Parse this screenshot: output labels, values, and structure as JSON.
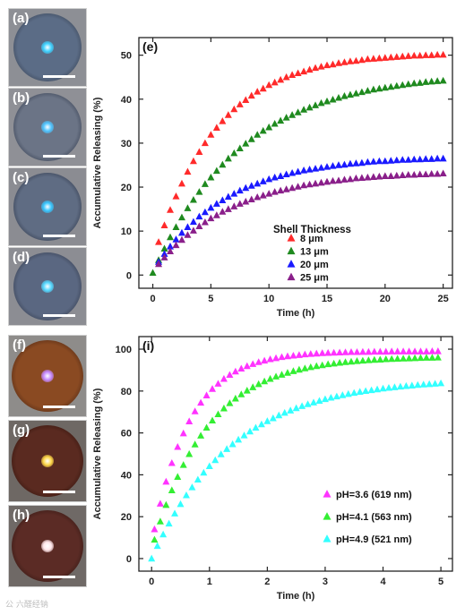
{
  "micrographs": {
    "top": [
      {
        "label": "(a)",
        "bg": "#8d8f95",
        "dish": "#5b6c86",
        "rim": "#3f4b5e",
        "spot": "#3fd2ff"
      },
      {
        "label": "(b)",
        "bg": "#8f9096",
        "dish": "#6b7486",
        "rim": "#40495b",
        "spot": "#4fc4ff"
      },
      {
        "label": "(c)",
        "bg": "#8b8c92",
        "dish": "#5f6c83",
        "rim": "#3a4356",
        "spot": "#38c6ff"
      },
      {
        "label": "(d)",
        "bg": "#8c8d93",
        "dish": "#5a6781",
        "rim": "#3c4558",
        "spot": "#55d8ff"
      }
    ],
    "bottom": [
      {
        "label": "(f)",
        "bg": "#8e8c8a",
        "dish": "#8a4a22",
        "rim": "#5a2f17",
        "spot": "#c58aff"
      },
      {
        "label": "(g)",
        "bg": "#6e6864",
        "dish": "#5a2a20",
        "rim": "#3c1a12",
        "spot": "#ffd84a"
      },
      {
        "label": "(h)",
        "bg": "#6f6966",
        "dish": "#5b2b25",
        "rim": "#3b1c17",
        "spot": "#ffe6ea"
      }
    ]
  },
  "watermark": "公 六醛经钠",
  "chart_data": [
    {
      "type": "scatter",
      "panel_label": "(e)",
      "title": "",
      "xlabel": "Time (h)",
      "ylabel": "Accumulative Releasing  (%)",
      "xlim": [
        -1.2,
        25.8
      ],
      "ylim": [
        -3,
        54
      ],
      "xticks": [
        0,
        5,
        10,
        15,
        20,
        25
      ],
      "yticks": [
        0,
        10,
        20,
        30,
        40,
        50
      ],
      "legend_title": "Shell Thickness",
      "legend_position": "center-right",
      "series": [
        {
          "name": "8   μm",
          "color": "#ff2a2a",
          "model": {
            "a": 50.6,
            "k": 0.185,
            "start": 0.5,
            "end": 25,
            "step": 0.5,
            "y0": 7.5
          }
        },
        {
          "name": "13 μm",
          "color": "#1f8a1f",
          "model": {
            "a": 46.0,
            "k": 0.13,
            "start": 0,
            "end": 25,
            "step": 0.5,
            "y0": 0.5
          }
        },
        {
          "name": "20 μm",
          "color": "#1a1aff",
          "model": {
            "a": 27.0,
            "k": 0.16,
            "start": 0.5,
            "end": 25,
            "step": 0.5,
            "y0": 3
          }
        },
        {
          "name": "25 μm",
          "color": "#8a1f8a",
          "model": {
            "a": 23.6,
            "k": 0.15,
            "start": 0.5,
            "end": 25,
            "step": 0.5,
            "y0": 2.5
          }
        }
      ]
    },
    {
      "type": "scatter",
      "panel_label": "(i)",
      "title": "",
      "xlabel": "Time (h)",
      "ylabel": "Accumulative Releasing  (%)",
      "xlim": [
        -0.22,
        5.2
      ],
      "ylim": [
        -6,
        106
      ],
      "xticks": [
        0,
        1,
        2,
        3,
        4,
        5
      ],
      "yticks": [
        0,
        20,
        40,
        60,
        80,
        100
      ],
      "legend_title": "",
      "legend_position": "bottom-right",
      "series": [
        {
          "name": "pH=3.6 (619 nm)",
          "color": "#ff33ff",
          "model": {
            "a": 99.0,
            "k": 1.55,
            "start": 0.05,
            "end": 5,
            "step": 0.1,
            "y0": 14
          }
        },
        {
          "name": "pH=4.1 (563 nm)",
          "color": "#33ee33",
          "model": {
            "a": 96.5,
            "k": 1.05,
            "start": 0.05,
            "end": 5,
            "step": 0.1,
            "y0": 9
          }
        },
        {
          "name": "pH=4.9 (521 nm)",
          "color": "#33ffff",
          "model": {
            "a": 86.0,
            "k": 0.72,
            "start": 0,
            "end": 5,
            "step": 0.1,
            "y0": 0
          }
        }
      ]
    }
  ]
}
